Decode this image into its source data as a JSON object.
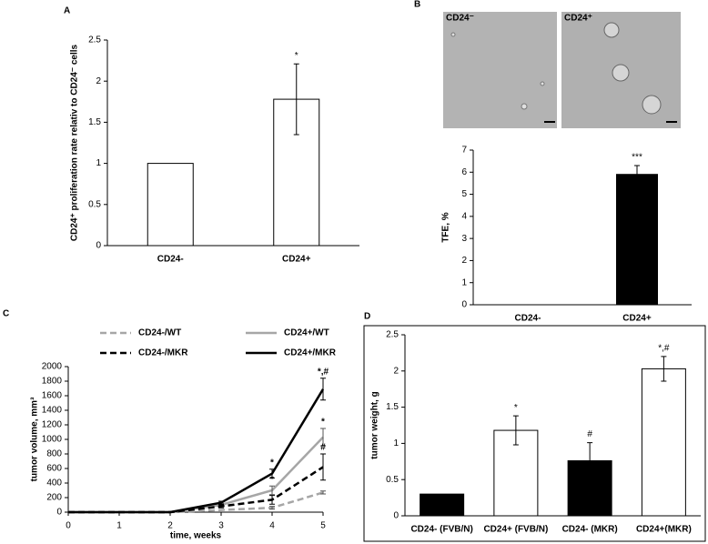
{
  "chart_data": [
    {
      "type": "bar",
      "label": "A",
      "ylabel": "CD24⁺ proliferation rate relativ to CD24⁻ cells",
      "categories": [
        "CD24-",
        "CD24+"
      ],
      "values": [
        1,
        1.78
      ],
      "errors": [
        null,
        0.43
      ],
      "annotations": [
        null,
        "*"
      ],
      "colors": [
        "#ffffff",
        "#ffffff"
      ],
      "ylim": [
        0,
        2.5
      ],
      "yticks": [
        0,
        0.5,
        1,
        1.5,
        2,
        2.5
      ]
    },
    {
      "type": "bar",
      "label": "B",
      "ylabel": "TFE, %",
      "categories": [
        "CD24-",
        "CD24+"
      ],
      "values": [
        0,
        5.9
      ],
      "errors": [
        null,
        0.4
      ],
      "annotations": [
        null,
        "***"
      ],
      "colors": [
        "#000000",
        "#000000"
      ],
      "ylim": [
        0,
        7
      ],
      "yticks": [
        0,
        1,
        2,
        3,
        4,
        5,
        6,
        7
      ]
    },
    {
      "type": "line",
      "label": "C",
      "xlabel": "time, weeks",
      "ylabel": "tumor volume, mm³",
      "x": [
        0,
        1,
        2,
        3,
        4,
        5
      ],
      "series": [
        {
          "name": "CD24-/WT",
          "color": "#a6a6a6",
          "dash": true,
          "values": [
            0,
            0,
            0,
            30,
            60,
            270
          ],
          "errors": [
            null,
            null,
            null,
            null,
            20,
            20
          ],
          "annotations": [
            null,
            null,
            null,
            null,
            null,
            null
          ]
        },
        {
          "name": "CD24+/WT",
          "color": "#a6a6a6",
          "dash": false,
          "values": [
            0,
            0,
            0,
            100,
            300,
            1030
          ],
          "errors": [
            null,
            null,
            null,
            20,
            60,
            120
          ],
          "annotations": [
            null,
            null,
            null,
            null,
            "*",
            "*"
          ]
        },
        {
          "name": "CD24-/MKR",
          "color": "#000000",
          "dash": true,
          "values": [
            0,
            0,
            0,
            80,
            170,
            620
          ],
          "errors": [
            null,
            null,
            null,
            20,
            60,
            180
          ],
          "annotations": [
            null,
            null,
            null,
            null,
            null,
            "#"
          ]
        },
        {
          "name": "CD24+/MKR",
          "color": "#000000",
          "dash": false,
          "values": [
            0,
            0,
            0,
            130,
            530,
            1690
          ],
          "errors": [
            null,
            null,
            null,
            20,
            60,
            150
          ],
          "annotations": [
            null,
            null,
            null,
            null,
            "*",
            "*,#"
          ]
        }
      ],
      "xlim": [
        0,
        5
      ],
      "xticks": [
        0,
        1,
        2,
        3,
        4,
        5
      ],
      "ylim": [
        0,
        2000
      ],
      "yticks": [
        0,
        200,
        400,
        600,
        800,
        1000,
        1200,
        1400,
        1600,
        1800,
        2000
      ]
    },
    {
      "type": "bar",
      "label": "D",
      "ylabel": "tumor weight, g",
      "categories": [
        "CD24- (FVB/N)",
        "CD24+ (FVB/N)",
        "CD24- (MKR)",
        "CD24+(MKR)"
      ],
      "values": [
        0.3,
        1.18,
        0.76,
        2.03
      ],
      "errors": [
        null,
        0.2,
        0.25,
        0.17
      ],
      "annotations": [
        null,
        "*",
        "#",
        "*,#"
      ],
      "colors": [
        "#000000",
        "#ffffff",
        "#000000",
        "#ffffff"
      ],
      "ylim": [
        0,
        2.5
      ],
      "yticks": [
        0,
        0.5,
        1,
        1.5,
        2,
        2.5
      ]
    }
  ],
  "images": [
    {
      "label": "CD24⁻"
    },
    {
      "label": "CD24⁺"
    }
  ]
}
